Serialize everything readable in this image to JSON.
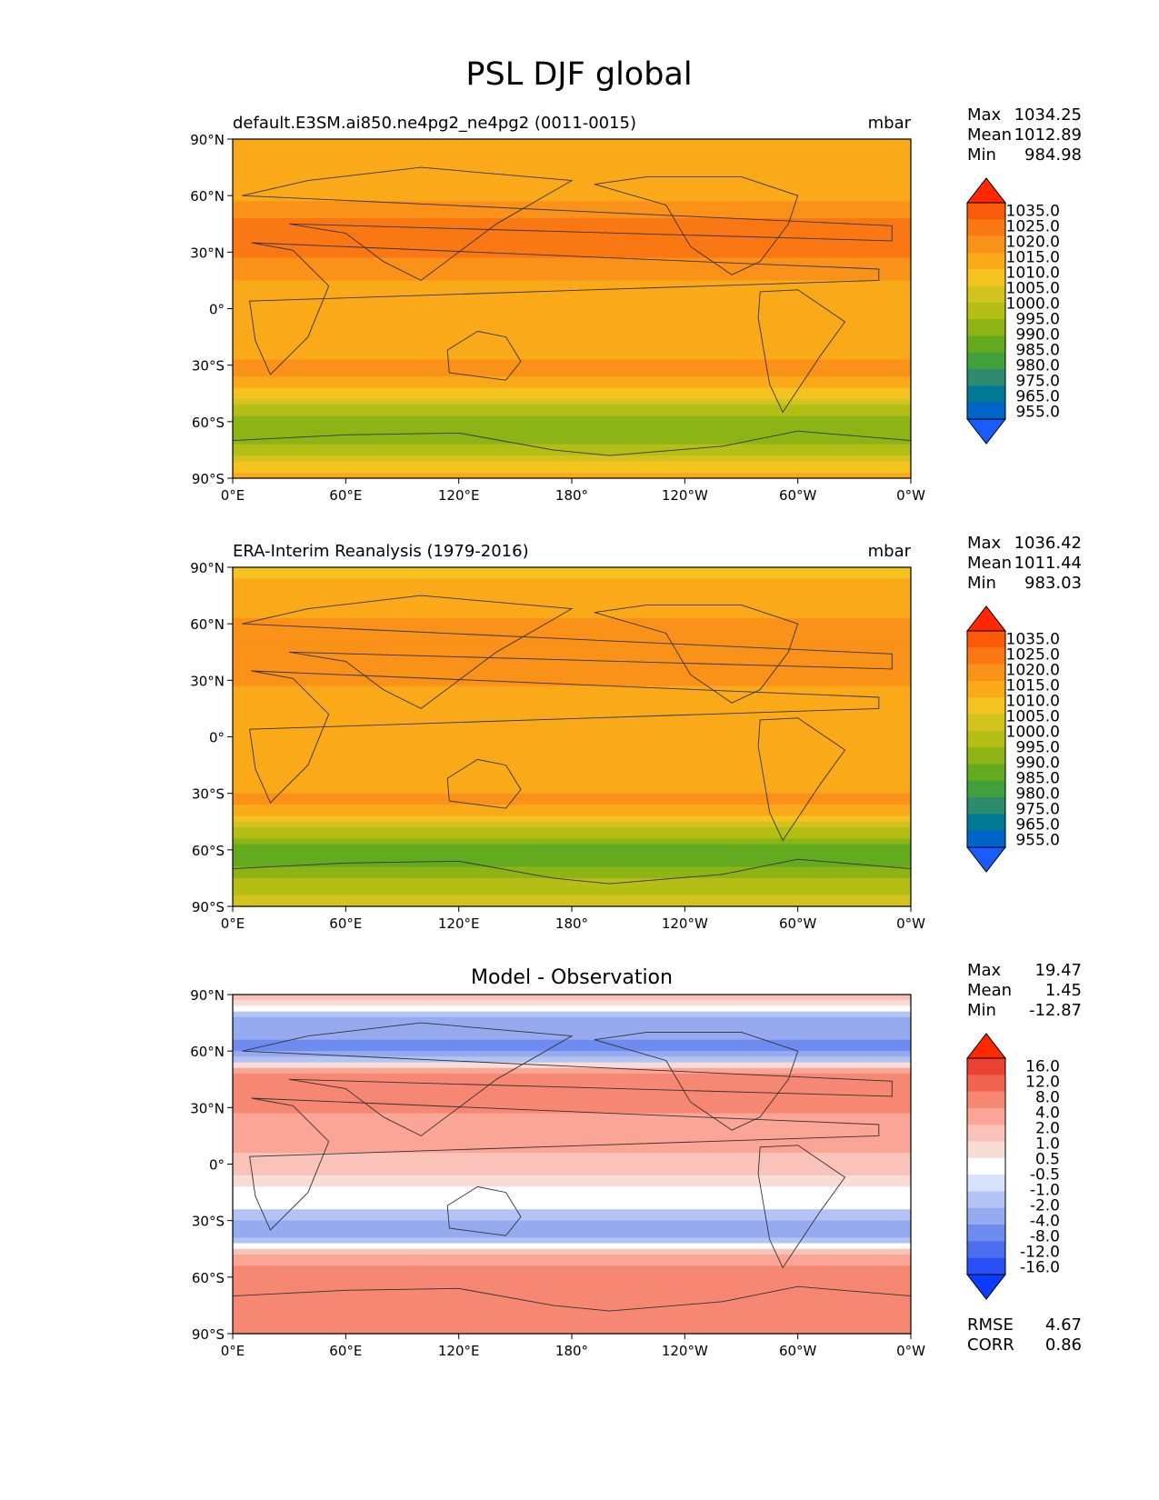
{
  "figure": {
    "title": "PSL DJF global"
  },
  "chart_data": [
    {
      "type": "heatmap",
      "title": "",
      "left_title": "default.E3SM.ai850.ne4pg2_ne4pg2 (0011-0015)",
      "units": "mbar",
      "x_ticks": [
        "0°E",
        "60°E",
        "120°E",
        "180°",
        "120°W",
        "60°W",
        "0°W"
      ],
      "y_ticks": [
        "90°N",
        "60°N",
        "30°N",
        "0°",
        "30°S",
        "60°S",
        "90°S"
      ],
      "xlim": [
        0,
        360
      ],
      "ylim": [
        -90,
        90
      ],
      "stats": [
        {
          "label": "Max",
          "value": "1034.25"
        },
        {
          "label": "Mean",
          "value": "1012.89"
        },
        {
          "label": "Min",
          "value": "984.98"
        }
      ],
      "colorbar": {
        "labels": [
          "955.0",
          "965.0",
          "975.0",
          "980.0",
          "985.0",
          "990.0",
          "995.0",
          "1000.0",
          "1005.0",
          "1010.0",
          "1015.0",
          "1020.0",
          "1025.0",
          "1035.0"
        ],
        "colors": [
          "#1a5bff",
          "#0064c8",
          "#007896",
          "#2e8c6e",
          "#41a03c",
          "#64aa1e",
          "#8cb414",
          "#b4be14",
          "#d2c31e",
          "#f5c31e",
          "#faaa19",
          "#fa9119",
          "#fa7814",
          "#fa5a0a",
          "#ff2800"
        ]
      },
      "field_description_levels": {
        "band_values_by_latitude": [
          {
            "lat": 90,
            "value": 1012
          },
          {
            "lat": 75,
            "value": 1010
          },
          {
            "lat": 60,
            "value": 1014
          },
          {
            "lat": 45,
            "value": 1022
          },
          {
            "lat": 35,
            "value": 1024
          },
          {
            "lat": 20,
            "value": 1016
          },
          {
            "lat": 0,
            "value": 1012
          },
          {
            "lat": -20,
            "value": 1014
          },
          {
            "lat": -35,
            "value": 1016
          },
          {
            "lat": -45,
            "value": 1008
          },
          {
            "lat": -55,
            "value": 996
          },
          {
            "lat": -65,
            "value": 990
          },
          {
            "lat": -75,
            "value": 998
          },
          {
            "lat": -90,
            "value": 1012
          }
        ]
      }
    },
    {
      "type": "heatmap",
      "title": "",
      "left_title": "ERA-Interim Reanalysis (1979-2016)",
      "units": "mbar",
      "x_ticks": [
        "0°E",
        "60°E",
        "120°E",
        "180°",
        "120°W",
        "60°W",
        "0°W"
      ],
      "y_ticks": [
        "90°N",
        "60°N",
        "30°N",
        "0°",
        "30°S",
        "60°S",
        "90°S"
      ],
      "xlim": [
        0,
        360
      ],
      "ylim": [
        -90,
        90
      ],
      "stats": [
        {
          "label": "Max",
          "value": "1036.42"
        },
        {
          "label": "Mean",
          "value": "1011.44"
        },
        {
          "label": "Min",
          "value": "983.03"
        }
      ],
      "colorbar": {
        "labels": [
          "955.0",
          "965.0",
          "975.0",
          "980.0",
          "985.0",
          "990.0",
          "995.0",
          "1000.0",
          "1005.0",
          "1010.0",
          "1015.0",
          "1020.0",
          "1025.0",
          "1035.0"
        ],
        "colors": [
          "#1a5bff",
          "#0064c8",
          "#007896",
          "#2e8c6e",
          "#41a03c",
          "#64aa1e",
          "#8cb414",
          "#b4be14",
          "#d2c31e",
          "#f5c31e",
          "#faaa19",
          "#fa9119",
          "#fa7814",
          "#fa5a0a",
          "#ff2800"
        ]
      },
      "field_description_levels": {
        "band_values_by_latitude": [
          {
            "lat": 90,
            "value": 1008
          },
          {
            "lat": 75,
            "value": 1012
          },
          {
            "lat": 60,
            "value": 1016
          },
          {
            "lat": 45,
            "value": 1020
          },
          {
            "lat": 35,
            "value": 1018
          },
          {
            "lat": 20,
            "value": 1013
          },
          {
            "lat": 0,
            "value": 1010
          },
          {
            "lat": -20,
            "value": 1013
          },
          {
            "lat": -35,
            "value": 1016
          },
          {
            "lat": -45,
            "value": 1006
          },
          {
            "lat": -55,
            "value": 992
          },
          {
            "lat": -65,
            "value": 986
          },
          {
            "lat": -75,
            "value": 994
          },
          {
            "lat": -90,
            "value": 1004
          }
        ]
      }
    },
    {
      "type": "heatmap",
      "title": "Model - Observation",
      "left_title": "",
      "units": "",
      "x_ticks": [
        "0°E",
        "60°E",
        "120°E",
        "180°",
        "120°W",
        "60°W",
        "0°W"
      ],
      "y_ticks": [
        "90°N",
        "60°N",
        "30°N",
        "0°",
        "30°S",
        "60°S",
        "90°S"
      ],
      "xlim": [
        0,
        360
      ],
      "ylim": [
        -90,
        90
      ],
      "stats": [
        {
          "label": "Max",
          "value": "19.47"
        },
        {
          "label": "Mean",
          "value": "1.45"
        },
        {
          "label": "Min",
          "value": "-12.87"
        }
      ],
      "metrics": [
        {
          "label": "RMSE",
          "value": "4.67"
        },
        {
          "label": "CORR",
          "value": "0.86"
        }
      ],
      "colorbar": {
        "labels": [
          "-16.0",
          "-12.0",
          "-8.0",
          "-4.0",
          "-2.0",
          "-1.0",
          "-0.5",
          "0.5",
          "1.0",
          "2.0",
          "4.0",
          "8.0",
          "12.0",
          "16.0"
        ],
        "colors": [
          "#0a3cff",
          "#2850f5",
          "#4b6ef0",
          "#6e8cf0",
          "#96aaf0",
          "#b4c3f5",
          "#d7e1fa",
          "#ffffff",
          "#fadcd7",
          "#fac3b9",
          "#faa596",
          "#f58773",
          "#f06450",
          "#eb4132",
          "#ff2800"
        ]
      },
      "field_description_levels": {
        "band_values_by_latitude": [
          {
            "lat": 90,
            "value": 2
          },
          {
            "lat": 75,
            "value": -3
          },
          {
            "lat": 60,
            "value": -5
          },
          {
            "lat": 45,
            "value": 6
          },
          {
            "lat": 35,
            "value": 5
          },
          {
            "lat": 20,
            "value": 3
          },
          {
            "lat": 0,
            "value": 1.5
          },
          {
            "lat": -20,
            "value": 0
          },
          {
            "lat": -35,
            "value": -3
          },
          {
            "lat": -45,
            "value": 0.5
          },
          {
            "lat": -55,
            "value": 5
          },
          {
            "lat": -65,
            "value": 7
          },
          {
            "lat": -75,
            "value": 4
          },
          {
            "lat": -90,
            "value": 8
          }
        ]
      }
    }
  ]
}
